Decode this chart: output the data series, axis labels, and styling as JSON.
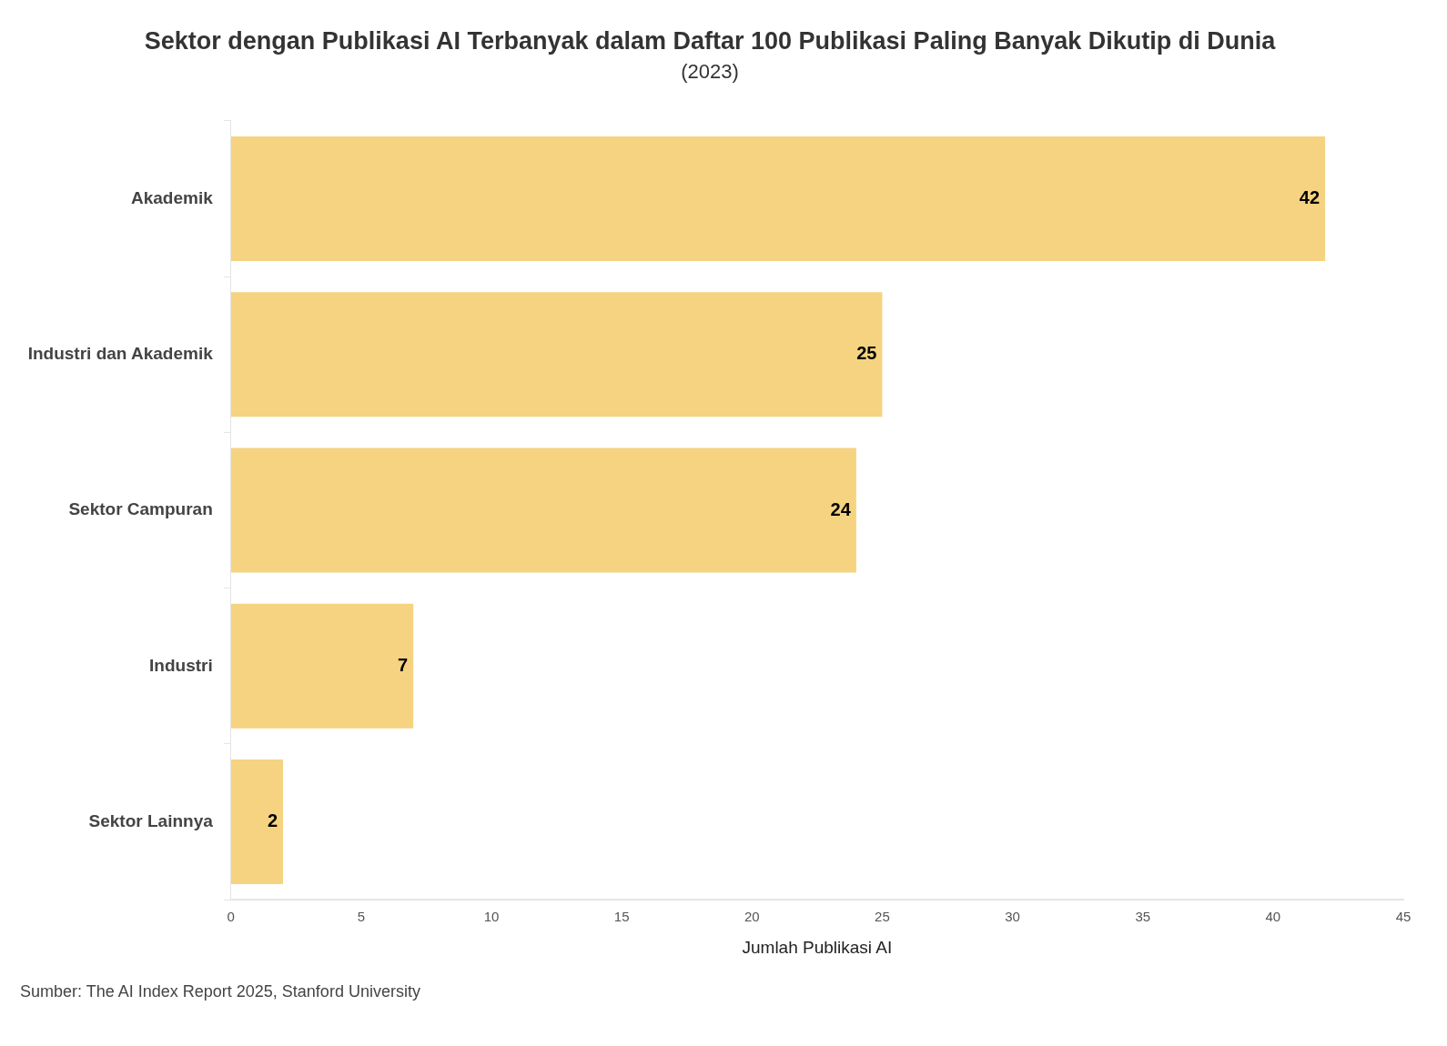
{
  "chart_data": {
    "type": "bar",
    "orientation": "horizontal",
    "title": "Sektor dengan Publikasi AI Terbanyak dalam Daftar 100 Publikasi Paling Banyak Dikutip di Dunia",
    "subtitle": "(2023)",
    "xlabel": "Jumlah Publikasi AI",
    "categories": [
      "Akademik",
      "Industri dan Akademik",
      "Sektor Campuran",
      "Industri",
      "Sektor Lainnya"
    ],
    "values": [
      42,
      25,
      24,
      7,
      2
    ],
    "color": "#f5d380",
    "xlim": [
      0,
      45
    ],
    "xticks": [
      0,
      5,
      10,
      15,
      20,
      25,
      30,
      35,
      40,
      45
    ],
    "grid": false,
    "legend": false,
    "data_labels": true,
    "annotations": [
      "Sumber: The AI Index Report 2025, Stanford University"
    ]
  }
}
